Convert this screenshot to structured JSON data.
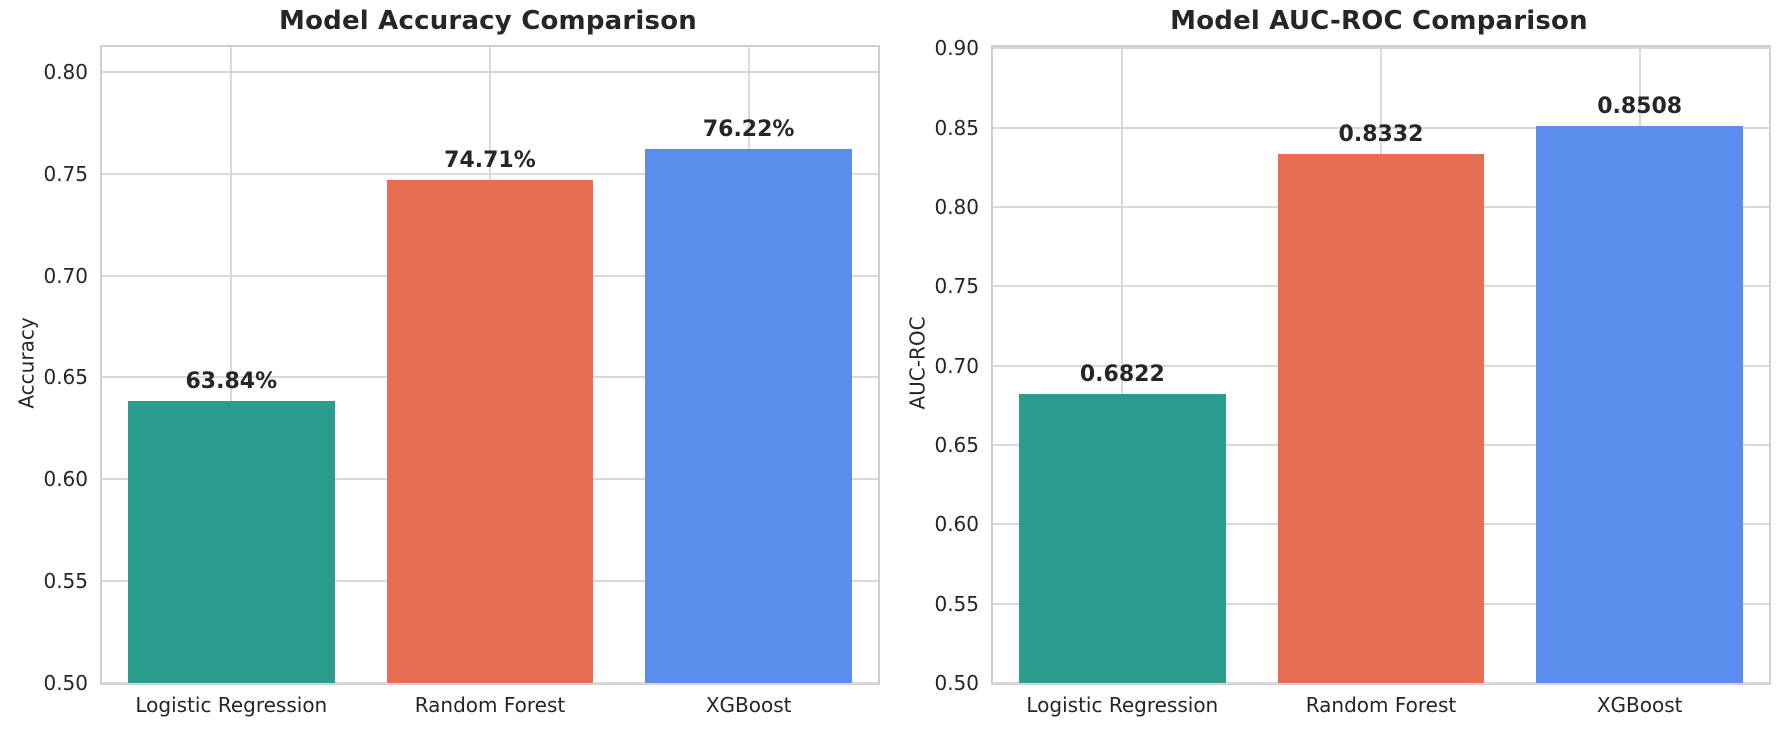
{
  "figure": {
    "background": "#ffffff",
    "text_color": "#262626",
    "grid_color": "#d9d9d9",
    "spine_color": "#cfcfcf"
  },
  "chart_data": [
    {
      "type": "bar",
      "title": "Model Accuracy Comparison",
      "ylabel": "Accuracy",
      "xlabel": "",
      "categories": [
        "Logistic Regression",
        "Random Forest",
        "XGBoost"
      ],
      "values": [
        0.6384,
        0.7471,
        0.7622
      ],
      "bar_labels": [
        "63.84%",
        "74.71%",
        "76.22%"
      ],
      "bar_colors": [
        "#2a9d8f",
        "#e76f51",
        "#5b8def"
      ],
      "ylim": [
        0.5,
        0.8122
      ],
      "yticks": [
        0.5,
        0.55,
        0.6,
        0.65,
        0.7,
        0.75,
        0.8
      ],
      "ytick_labels": [
        "0.50",
        "0.55",
        "0.60",
        "0.65",
        "0.70",
        "0.75",
        "0.80"
      ],
      "grid": true,
      "legend": null
    },
    {
      "type": "bar",
      "title": "Model AUC-ROC Comparison",
      "ylabel": "AUC-ROC",
      "xlabel": "",
      "categories": [
        "Logistic Regression",
        "Random Forest",
        "XGBoost"
      ],
      "values": [
        0.6822,
        0.8332,
        0.8508
      ],
      "bar_labels": [
        "0.6822",
        "0.8332",
        "0.8508"
      ],
      "bar_colors": [
        "#2a9d8f",
        "#e76f51",
        "#5b8def"
      ],
      "ylim": [
        0.5,
        0.9008
      ],
      "yticks": [
        0.5,
        0.55,
        0.6,
        0.65,
        0.7,
        0.75,
        0.8,
        0.85,
        0.9
      ],
      "ytick_labels": [
        "0.50",
        "0.55",
        "0.60",
        "0.65",
        "0.70",
        "0.75",
        "0.80",
        "0.85",
        "0.90"
      ],
      "grid": true,
      "legend": null
    }
  ]
}
